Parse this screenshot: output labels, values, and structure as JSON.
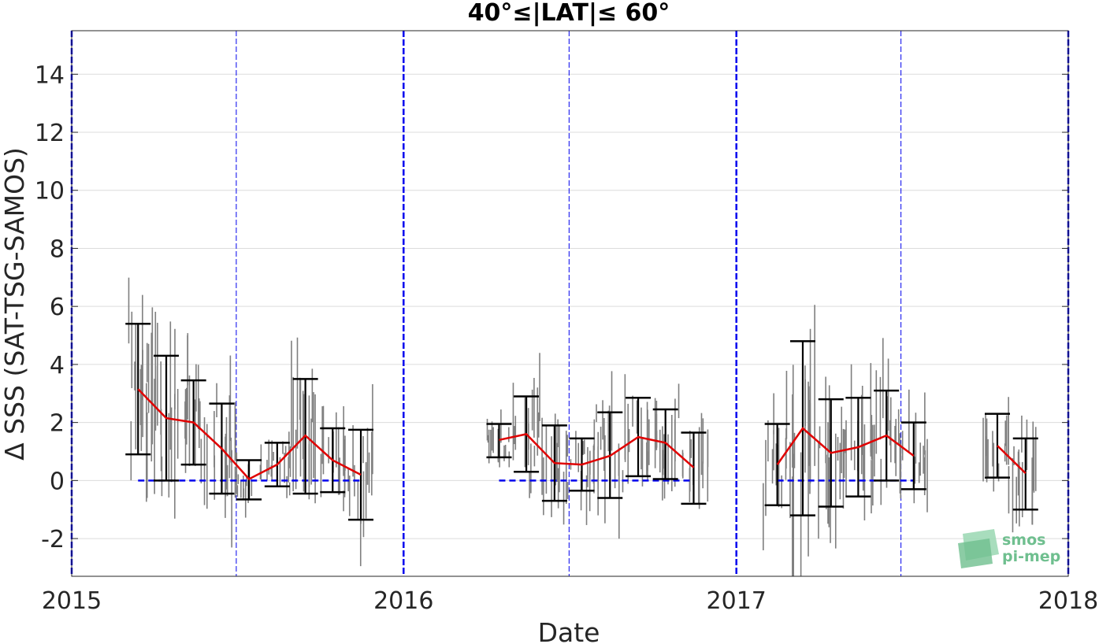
{
  "chart_data": {
    "type": "scatter",
    "title": "40°≤|LAT|≤ 60°",
    "xlabel": "Date",
    "ylabel": "Δ SSS (SAT-TSG-SAMOS)",
    "xlim": [
      "2015-01-01",
      "2018-01-01"
    ],
    "ylim": [
      -3.3,
      15.5
    ],
    "xticks": [
      "2015-01-01",
      "2016-01-01",
      "2017-01-01",
      "2018-01-01"
    ],
    "xtick_labels": [
      "2015",
      "2016",
      "2017",
      "2018"
    ],
    "yticks": [
      -2,
      0,
      2,
      4,
      6,
      8,
      10,
      12,
      14
    ],
    "grid": "horizontal",
    "year_lines": [
      "2015-01-01",
      "2016-01-01",
      "2017-01-01",
      "2018-01-01"
    ],
    "mid_year_lines": [
      "2015-07-01",
      "2016-07-01",
      "2017-07-01"
    ],
    "zero_segments": [
      {
        "from": "2015-03-15",
        "to": "2015-11-15",
        "y": 0
      },
      {
        "from": "2016-04-15",
        "to": "2016-11-15",
        "y": 0
      },
      {
        "from": "2017-02-15",
        "to": "2017-07-15",
        "y": 0
      }
    ],
    "series": [
      {
        "points": [
          {
            "date": "2015-03-15",
            "mean": 3.15,
            "low": 0.9,
            "high": 5.4
          },
          {
            "date": "2015-04-15",
            "mean": 2.15,
            "low": 0.0,
            "high": 4.3
          },
          {
            "date": "2015-05-15",
            "mean": 2.0,
            "low": 0.55,
            "high": 3.45
          },
          {
            "date": "2015-06-15",
            "mean": 1.1,
            "low": -0.45,
            "high": 2.65
          },
          {
            "date": "2015-07-15",
            "mean": 0.05,
            "low": -0.65,
            "high": 0.7
          },
          {
            "date": "2015-08-15",
            "mean": 0.55,
            "low": -0.2,
            "high": 1.3
          },
          {
            "date": "2015-09-15",
            "mean": 1.55,
            "low": -0.45,
            "high": 3.5
          },
          {
            "date": "2015-10-15",
            "mean": 0.7,
            "low": -0.4,
            "high": 1.8
          },
          {
            "date": "2015-11-15",
            "mean": 0.2,
            "low": -1.35,
            "high": 1.75
          }
        ]
      },
      {
        "points": [
          {
            "date": "2016-04-15",
            "mean": 1.4,
            "low": 0.8,
            "high": 1.95
          },
          {
            "date": "2016-05-15",
            "mean": 1.6,
            "low": 0.3,
            "high": 2.9
          },
          {
            "date": "2016-06-15",
            "mean": 0.6,
            "low": -0.7,
            "high": 1.9
          },
          {
            "date": "2016-07-15",
            "mean": 0.55,
            "low": -0.35,
            "high": 1.45
          },
          {
            "date": "2016-08-15",
            "mean": 0.85,
            "low": -0.6,
            "high": 2.35
          },
          {
            "date": "2016-09-15",
            "mean": 1.5,
            "low": 0.15,
            "high": 2.85
          },
          {
            "date": "2016-10-15",
            "mean": 1.3,
            "low": 0.05,
            "high": 2.45
          },
          {
            "date": "2016-11-15",
            "mean": 0.45,
            "low": -0.8,
            "high": 1.65
          }
        ]
      },
      {
        "points": [
          {
            "date": "2017-02-15",
            "mean": 0.55,
            "low": -0.85,
            "high": 1.95
          },
          {
            "date": "2017-03-15",
            "mean": 1.8,
            "low": -1.2,
            "high": 4.8
          },
          {
            "date": "2017-04-15",
            "mean": 0.95,
            "low": -0.9,
            "high": 2.8
          },
          {
            "date": "2017-05-15",
            "mean": 1.15,
            "low": -0.55,
            "high": 2.85
          },
          {
            "date": "2017-06-15",
            "mean": 1.55,
            "low": 0.0,
            "high": 3.1
          },
          {
            "date": "2017-07-15",
            "mean": 0.85,
            "low": -0.3,
            "high": 2.0
          }
        ]
      },
      {
        "points": [
          {
            "date": "2017-10-15",
            "mean": 1.2,
            "low": 0.1,
            "high": 2.3
          },
          {
            "date": "2017-11-15",
            "mean": 0.25,
            "low": -1.0,
            "high": 1.45
          }
        ]
      }
    ],
    "colors": {
      "mean_line": "#e00000",
      "error_bars": "#000000",
      "scatter": "#7f7f7f",
      "reference_lines": "#0000ee",
      "grid": "#dcdcdc",
      "logo": "#6fbf8f"
    }
  },
  "logo": {
    "line1": "smos",
    "line2": "pi-mep"
  }
}
